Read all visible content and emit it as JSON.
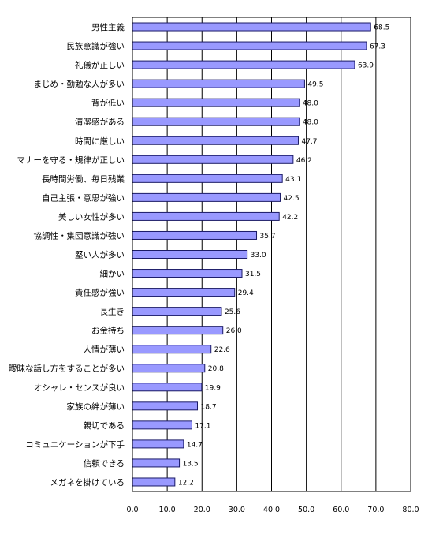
{
  "colors": {
    "bar_fill": "#9999ff",
    "bar_stroke": "#1a1a66",
    "grid": "#000000",
    "plot_border": "#000000"
  },
  "chart_data": {
    "type": "bar",
    "orientation": "horizontal",
    "title": "",
    "xlabel": "",
    "ylabel": "",
    "xlim": [
      0,
      80
    ],
    "x_ticks": [
      "0.0",
      "10.0",
      "20.0",
      "30.0",
      "40.0",
      "50.0",
      "60.0",
      "70.0",
      "80.0"
    ],
    "grid": "vertical",
    "legend": "none",
    "categories": [
      "男性主義",
      "民族意識が強い",
      "礼儀が正しい",
      "まじめ・勤勉な人が多い",
      "背が低い",
      "清潔感がある",
      "時間に厳しい",
      "マナーを守る・規律が正しい",
      "長時間労働、毎日残業",
      "自己主張・意思が強い",
      "美しい女性が多い",
      "協調性・集団意識が強い",
      "堅い人が多い",
      "細かい",
      "責任感が強い",
      "長生き",
      "お金持ち",
      "人情が薄い",
      "曖昧な話し方をすることが多い",
      "オシャレ・センスが良い",
      "家族の絆が薄い",
      "親切である",
      "コミュニケーションが下手",
      "信頼できる",
      "メガネを掛けている"
    ],
    "values": [
      68.5,
      67.3,
      63.9,
      49.5,
      48.0,
      48.0,
      47.7,
      46.2,
      43.1,
      42.5,
      42.2,
      35.7,
      33.0,
      31.5,
      29.4,
      25.6,
      26.0,
      22.6,
      20.8,
      19.9,
      18.7,
      17.1,
      14.7,
      13.5,
      12.2
    ],
    "value_labels": [
      "68.5",
      "67.3",
      "63.9",
      "49.5",
      "48.0",
      "48.0",
      "47.7",
      "46.2",
      "43.1",
      "42.5",
      "42.2",
      "35.7",
      "33.0",
      "31.5",
      "29.4",
      "25.6",
      "26.0",
      "22.6",
      "20.8",
      "19.9",
      "18.7",
      "17.1",
      "14.7",
      "13.5",
      "12.2"
    ]
  }
}
